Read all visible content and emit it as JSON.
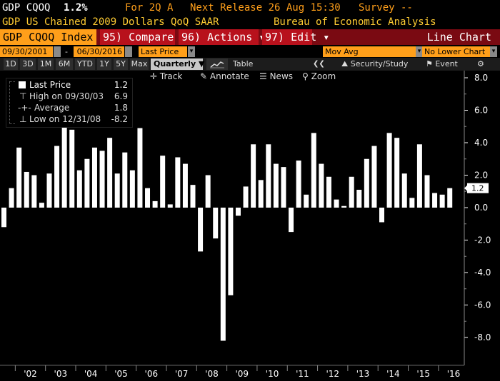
{
  "ticker": {
    "symbol": "GDP CQOQ",
    "last": "1.2%",
    "for_label": "For 2Q A",
    "next_release": "Next Release 26 Aug 15:30",
    "survey": "Survey --"
  },
  "description": {
    "name": "GDP US Chained 2009 Dollars QoQ SAAR",
    "source": "Bureau of Economic Analysis"
  },
  "action_bar": {
    "security": "GDP CQOQ Index",
    "compare": "95) Compare",
    "actions": "96) Actions ▾",
    "edit": "97) Edit ▾",
    "chart_type": "Line Chart"
  },
  "date_row": {
    "start_date": "09/30/2001",
    "dash": "-",
    "end_date": "06/30/2016",
    "field": "Last Price",
    "mov_avg": "Mov Avg",
    "lower_chart": "No Lower Chart"
  },
  "period_row": {
    "periods": [
      "1D",
      "3D",
      "1M",
      "6M",
      "YTD",
      "1Y",
      "5Y",
      "Max"
    ],
    "frequency": "Quarterly ▼",
    "table": "Table",
    "rewind": "❮❮",
    "security_study": "Security/Study",
    "event": "Event"
  },
  "chart_toolbar": {
    "track": "Track",
    "annotate": "Annotate",
    "news": "News",
    "zoom": "Zoom"
  },
  "legend": {
    "last_price_label": "Last Price",
    "last_price_value": "1.2",
    "high_label": "High on 09/30/03",
    "high_value": "6.9",
    "average_label": "Average",
    "average_value": "1.8",
    "low_label": "Low on 12/31/08",
    "low_value": "-8.2"
  },
  "colors": {
    "background": "#000000",
    "bars": "#ffffff",
    "header_orange": "#ff9f1a",
    "action_red": "#b8111c",
    "label_yellow": "#ffcc33"
  },
  "chart_data": {
    "type": "bar",
    "ylim": [
      -9.8,
      8.0
    ],
    "yticks": [
      "8.0",
      "6.0",
      "4.0",
      "2.0",
      "0.0",
      "-2.0",
      "-4.0",
      "-6.0",
      "-8.0"
    ],
    "year_labels": [
      "'02",
      "'03",
      "'04",
      "'05",
      "'06",
      "'07",
      "'08",
      "'09",
      "'10",
      "'11",
      "'12",
      "'13",
      "'14",
      "'15",
      "'16"
    ],
    "last_value_label": "1.2",
    "x": [
      "2001Q3",
      "2001Q4",
      "2002Q1",
      "2002Q2",
      "2002Q3",
      "2002Q4",
      "2003Q1",
      "2003Q2",
      "2003Q3",
      "2003Q4",
      "2004Q1",
      "2004Q2",
      "2004Q3",
      "2004Q4",
      "2005Q1",
      "2005Q2",
      "2005Q3",
      "2005Q4",
      "2006Q1",
      "2006Q2",
      "2006Q3",
      "2006Q4",
      "2007Q1",
      "2007Q2",
      "2007Q3",
      "2007Q4",
      "2008Q1",
      "2008Q2",
      "2008Q3",
      "2008Q4",
      "2009Q1",
      "2009Q2",
      "2009Q3",
      "2009Q4",
      "2010Q1",
      "2010Q2",
      "2010Q3",
      "2010Q4",
      "2011Q1",
      "2011Q2",
      "2011Q3",
      "2011Q4",
      "2012Q1",
      "2012Q2",
      "2012Q3",
      "2012Q4",
      "2013Q1",
      "2013Q2",
      "2013Q3",
      "2013Q4",
      "2014Q1",
      "2014Q2",
      "2014Q3",
      "2014Q4",
      "2015Q1",
      "2015Q2",
      "2015Q3",
      "2015Q4",
      "2016Q1",
      "2016Q2"
    ],
    "values": [
      -1.2,
      1.2,
      3.7,
      2.2,
      2.0,
      0.3,
      2.1,
      3.8,
      6.9,
      4.8,
      2.3,
      3.0,
      3.7,
      3.5,
      4.3,
      2.1,
      3.4,
      2.3,
      4.9,
      1.2,
      0.4,
      3.2,
      0.2,
      3.1,
      2.7,
      1.4,
      -2.7,
      2.0,
      -1.9,
      -8.2,
      -5.4,
      -0.5,
      1.3,
      3.9,
      1.7,
      3.9,
      2.7,
      2.5,
      -1.5,
      2.9,
      0.8,
      4.6,
      2.7,
      1.9,
      0.5,
      0.1,
      1.9,
      1.1,
      3.0,
      3.8,
      -0.9,
      4.6,
      4.3,
      2.1,
      0.6,
      3.9,
      2.0,
      0.9,
      0.8,
      1.2
    ]
  }
}
